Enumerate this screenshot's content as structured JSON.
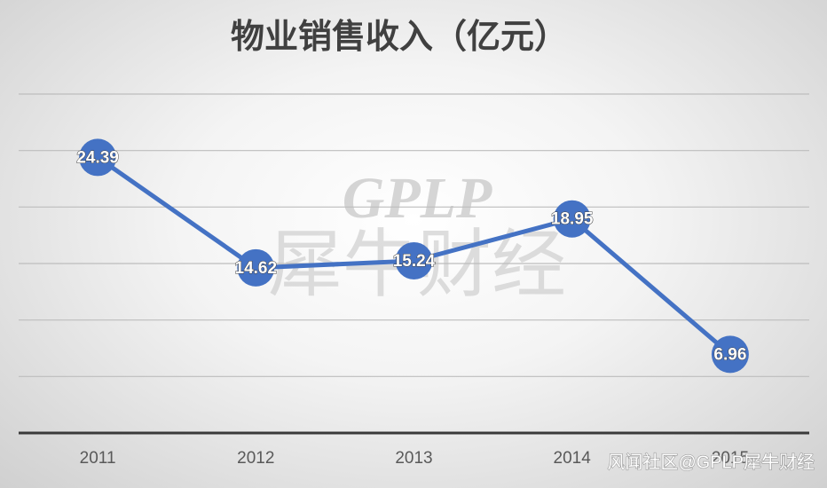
{
  "chart_data": {
    "type": "line",
    "title": "物业销售收入（亿元）",
    "categories": [
      "2011",
      "2012",
      "2013",
      "2014",
      "2015"
    ],
    "series": [
      {
        "name": "物业销售收入",
        "color": "#4472c4",
        "values": [
          24.39,
          14.62,
          15.24,
          18.95,
          6.96
        ]
      }
    ],
    "ylim": [
      0,
      30
    ],
    "yticks": [
      0,
      5,
      10,
      15,
      20,
      25,
      30
    ],
    "grid": true,
    "annotations": [
      "GPLP",
      "犀牛财经",
      "风闻社区@GPLP犀牛财经"
    ]
  }
}
